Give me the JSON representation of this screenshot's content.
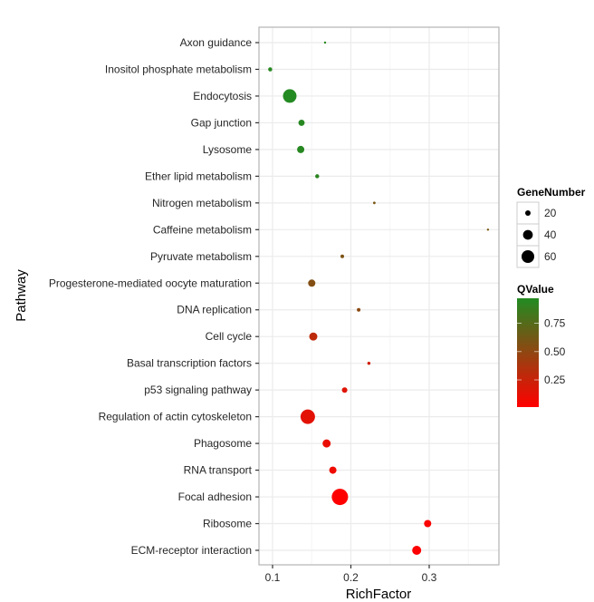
{
  "chart_data": {
    "type": "scatter",
    "subtype": "bubble",
    "title": "",
    "xlabel": "RichFactor",
    "ylabel": "Pathway",
    "xlim": [
      0.083,
      0.389
    ],
    "xticks": [
      0.1,
      0.2,
      0.3
    ],
    "xtick_labels": [
      "0.1",
      "0.2",
      "0.3"
    ],
    "grid": true,
    "categories": [
      "Axon guidance",
      "Inositol phosphate metabolism",
      "Endocytosis",
      "Gap junction",
      "Lysosome",
      "Ether lipid metabolism",
      "Nitrogen metabolism",
      "Caffeine metabolism",
      "Pyruvate metabolism",
      "Progesterone-mediated oocyte maturation",
      "DNA replication",
      "Cell cycle",
      "Basal transcription factors",
      "p53 signaling pathway",
      "Regulation of actin cytoskeleton",
      "Phagosome",
      "RNA transport",
      "Focal adhesion",
      "Ribosome",
      "ECM-receptor interaction"
    ],
    "points": [
      {
        "pathway": "Axon guidance",
        "rich_factor": 0.167,
        "gene_number": 12,
        "q_value": 0.95
      },
      {
        "pathway": "Inositol phosphate metabolism",
        "rich_factor": 0.097,
        "gene_number": 16,
        "q_value": 0.95
      },
      {
        "pathway": "Endocytosis",
        "rich_factor": 0.122,
        "gene_number": 67,
        "q_value": 0.96
      },
      {
        "pathway": "Gap junction",
        "rich_factor": 0.137,
        "gene_number": 23,
        "q_value": 0.95
      },
      {
        "pathway": "Lysosome",
        "rich_factor": 0.136,
        "gene_number": 27,
        "q_value": 0.95
      },
      {
        "pathway": "Ether lipid metabolism",
        "rich_factor": 0.157,
        "gene_number": 16,
        "q_value": 0.93
      },
      {
        "pathway": "Nitrogen metabolism",
        "rich_factor": 0.23,
        "gene_number": 13,
        "q_value": 0.6
      },
      {
        "pathway": "Caffeine metabolism",
        "rich_factor": 0.375,
        "gene_number": 12,
        "q_value": 0.6
      },
      {
        "pathway": "Pyruvate metabolism",
        "rich_factor": 0.189,
        "gene_number": 15,
        "q_value": 0.58
      },
      {
        "pathway": "Progesterone-mediated oocyte maturation",
        "rich_factor": 0.15,
        "gene_number": 27,
        "q_value": 0.55
      },
      {
        "pathway": "DNA replication",
        "rich_factor": 0.21,
        "gene_number": 15,
        "q_value": 0.52
      },
      {
        "pathway": "Cell cycle",
        "rich_factor": 0.152,
        "gene_number": 31,
        "q_value": 0.3
      },
      {
        "pathway": "Basal transcription factors",
        "rich_factor": 0.223,
        "gene_number": 14,
        "q_value": 0.22
      },
      {
        "pathway": "p53 signaling pathway",
        "rich_factor": 0.192,
        "gene_number": 20,
        "q_value": 0.15
      },
      {
        "pathway": "Regulation of actin cytoskeleton",
        "rich_factor": 0.145,
        "gene_number": 75,
        "q_value": 0.13
      },
      {
        "pathway": "Phagosome",
        "rich_factor": 0.169,
        "gene_number": 31,
        "q_value": 0.1
      },
      {
        "pathway": "RNA transport",
        "rich_factor": 0.177,
        "gene_number": 27,
        "q_value": 0.08
      },
      {
        "pathway": "Focal adhesion",
        "rich_factor": 0.186,
        "gene_number": 92,
        "q_value": 0.01
      },
      {
        "pathway": "Ribosome",
        "rich_factor": 0.298,
        "gene_number": 27,
        "q_value": 0.03
      },
      {
        "pathway": "ECM-receptor interaction",
        "rich_factor": 0.284,
        "gene_number": 36,
        "q_value": 0.02
      }
    ],
    "legend": {
      "size": {
        "title": "GeneNumber",
        "breaks": [
          20,
          40,
          60
        ],
        "labels": [
          "20",
          "40",
          "60"
        ]
      },
      "color": {
        "title": "QValue",
        "range": [
          0.01,
          0.97
        ],
        "breaks": [
          0.25,
          0.5,
          0.75
        ],
        "labels": [
          "0.25",
          "0.50",
          "0.75"
        ],
        "low_color": "#FF0000",
        "high_color": "#228B22"
      },
      "placement": "right"
    },
    "colors": {
      "panel_border": "#b3b3b3",
      "grid_major": "#ebebeb",
      "grid_minor": "#f5f5f5",
      "tick": "#333333"
    }
  }
}
